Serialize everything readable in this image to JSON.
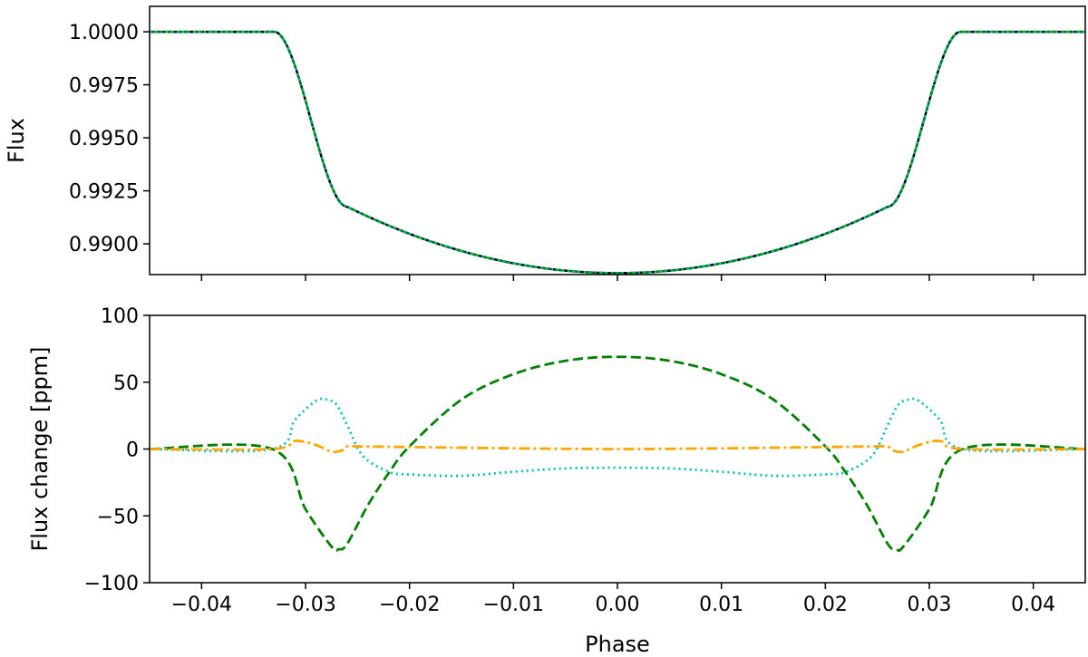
{
  "chart_data": [
    {
      "type": "line",
      "title": "",
      "xlabel": "",
      "ylabel": "Flux",
      "xlim": [
        -0.045,
        0.045
      ],
      "ylim": [
        0.98855,
        1.0012
      ],
      "x_ticks": [
        -0.04,
        -0.03,
        -0.02,
        -0.01,
        0.0,
        0.01,
        0.02,
        0.03,
        0.04
      ],
      "x_tick_labels_shown": false,
      "y_ticks": [
        0.99,
        0.9925,
        0.995,
        0.9975,
        1.0
      ],
      "y_tick_labels": [
        "0.9900",
        "0.9925",
        "0.9950",
        "0.9975",
        "1.0000"
      ],
      "grid": false,
      "transit": {
        "t14": 0.033,
        "t23": 0.026,
        "depth_center": 0.01138,
        "depth_at_contact": 0.00825
      },
      "series": [
        {
          "color": "#000000",
          "style": "solid"
        },
        {
          "color": "#008000",
          "style": "dashed"
        },
        {
          "color": "#00bfbf",
          "style": "dotted"
        }
      ]
    },
    {
      "type": "line",
      "title": "",
      "xlabel": "Phase",
      "ylabel": "Flux change [ppm]",
      "xlim": [
        -0.045,
        0.045
      ],
      "ylim": [
        -100,
        100
      ],
      "x_ticks": [
        -0.04,
        -0.03,
        -0.02,
        -0.01,
        0.0,
        0.01,
        0.02,
        0.03,
        0.04
      ],
      "x_tick_labels": [
        "−0.04",
        "−0.03",
        "−0.02",
        "−0.01",
        "0.00",
        "0.01",
        "0.02",
        "0.03",
        "0.04"
      ],
      "y_ticks": [
        -100,
        -50,
        0,
        50,
        100
      ],
      "y_tick_labels": [
        "−100",
        "−50",
        "0",
        "50",
        "100"
      ],
      "grid": false,
      "series": [
        {
          "color": "#008000",
          "style": "dashed",
          "x": [
            -0.045,
            -0.0332,
            -0.03,
            -0.0275,
            -0.0268,
            -0.026,
            -0.024,
            -0.022,
            -0.02,
            -0.015,
            -0.01,
            -0.005,
            0.0,
            0.005,
            0.01,
            0.015,
            0.02,
            0.022,
            0.024,
            0.026,
            0.0268,
            0.0275,
            0.03,
            0.0332,
            0.045
          ],
          "y": [
            0,
            0,
            -45,
            -73,
            -75,
            -71,
            -42,
            -18,
            2,
            37,
            56,
            66,
            69,
            66,
            56,
            37,
            2,
            -18,
            -42,
            -71,
            -75,
            -73,
            -45,
            0,
            0
          ]
        },
        {
          "color": "#00bfbf",
          "style": "dotted",
          "x": [
            -0.045,
            -0.0332,
            -0.031,
            -0.029,
            -0.028,
            -0.027,
            -0.026,
            -0.0245,
            -0.022,
            -0.02,
            -0.015,
            -0.01,
            -0.005,
            0.0,
            0.005,
            0.01,
            0.015,
            0.02,
            0.022,
            0.0245,
            0.026,
            0.027,
            0.028,
            0.029,
            0.031,
            0.0332,
            0.045
          ],
          "y": [
            0,
            0,
            22,
            36,
            37,
            33,
            18,
            -5,
            -17,
            -19,
            -20,
            -17,
            -14.5,
            -14,
            -14.5,
            -17,
            -20,
            -19,
            -17,
            -5,
            18,
            33,
            37,
            36,
            22,
            0,
            0
          ]
        },
        {
          "color": "#ffa500",
          "style": "dashdot",
          "x": [
            -0.045,
            -0.0332,
            -0.031,
            -0.029,
            -0.0275,
            -0.0265,
            -0.026,
            -0.025,
            -0.02,
            -0.01,
            0.0,
            0.01,
            0.02,
            0.025,
            0.026,
            0.0265,
            0.0275,
            0.029,
            0.031,
            0.0332,
            0.045
          ],
          "y": [
            0,
            0,
            6,
            3,
            -2,
            -1,
            2,
            2,
            1.5,
            0.5,
            0,
            0.5,
            1.5,
            2,
            2,
            -1,
            -2,
            3,
            6,
            0,
            0
          ]
        }
      ]
    }
  ]
}
